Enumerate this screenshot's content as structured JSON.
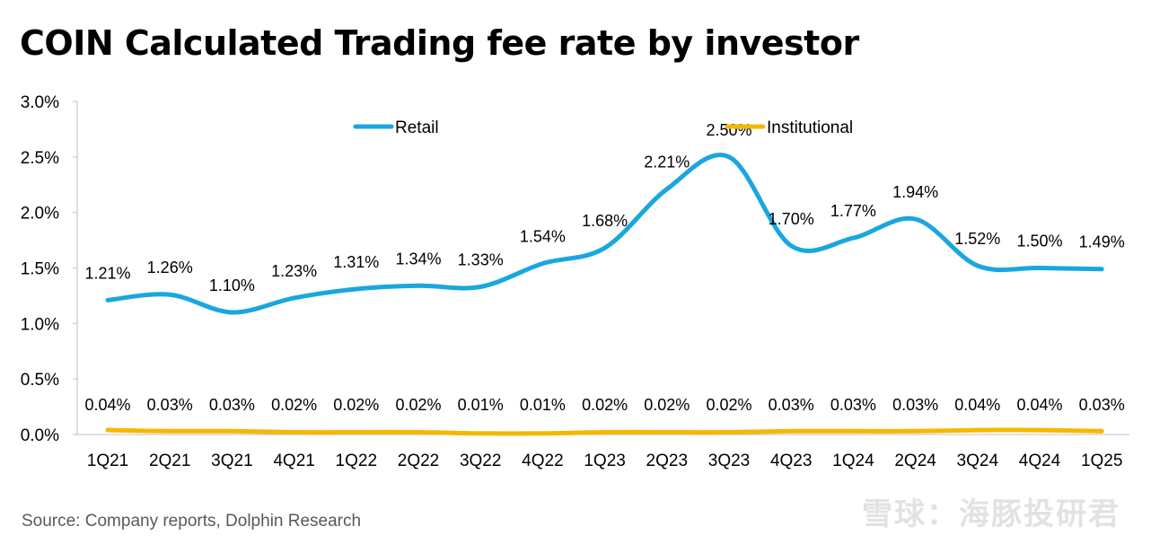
{
  "title": "COIN Calculated Trading fee rate by investor",
  "source": "Source: Company reports, Dolphin Research",
  "watermark": "雪球：海豚投研君",
  "chart_data": {
    "type": "line",
    "title": "COIN Calculated Trading fee rate by investor",
    "categories": [
      "1Q21",
      "2Q21",
      "3Q21",
      "4Q21",
      "1Q22",
      "2Q22",
      "3Q22",
      "4Q22",
      "1Q23",
      "2Q23",
      "3Q23",
      "4Q23",
      "1Q24",
      "2Q24",
      "3Q24",
      "4Q24",
      "1Q25"
    ],
    "series": [
      {
        "name": "Retail",
        "color": "#1aa6e0",
        "values": [
          1.21,
          1.26,
          1.1,
          1.23,
          1.31,
          1.34,
          1.33,
          1.54,
          1.68,
          2.21,
          2.5,
          1.7,
          1.77,
          1.94,
          1.52,
          1.5,
          1.49
        ],
        "labels": [
          "1.21%",
          "1.26%",
          "1.10%",
          "1.23%",
          "1.31%",
          "1.34%",
          "1.33%",
          "1.54%",
          "1.68%",
          "2.21%",
          "2.50%",
          "1.70%",
          "1.77%",
          "1.94%",
          "1.52%",
          "1.50%",
          "1.49%"
        ]
      },
      {
        "name": "Institutional",
        "color": "#f5b800",
        "values": [
          0.04,
          0.03,
          0.03,
          0.02,
          0.02,
          0.02,
          0.01,
          0.01,
          0.02,
          0.02,
          0.02,
          0.03,
          0.03,
          0.03,
          0.04,
          0.04,
          0.03
        ],
        "labels": [
          "0.04%",
          "0.03%",
          "0.03%",
          "0.02%",
          "0.02%",
          "0.02%",
          "0.01%",
          "0.01%",
          "0.02%",
          "0.02%",
          "0.02%",
          "0.03%",
          "0.03%",
          "0.03%",
          "0.04%",
          "0.04%",
          "0.03%"
        ]
      }
    ],
    "ylim": [
      0,
      3.0
    ],
    "yticks": [
      0,
      0.5,
      1.0,
      1.5,
      2.0,
      2.5,
      3.0
    ],
    "ytick_labels": [
      "0.0%",
      "0.5%",
      "1.0%",
      "1.5%",
      "2.0%",
      "2.5%",
      "3.0%"
    ],
    "xlabel": "",
    "ylabel": "",
    "grid": false,
    "legend_position": "top-center"
  }
}
